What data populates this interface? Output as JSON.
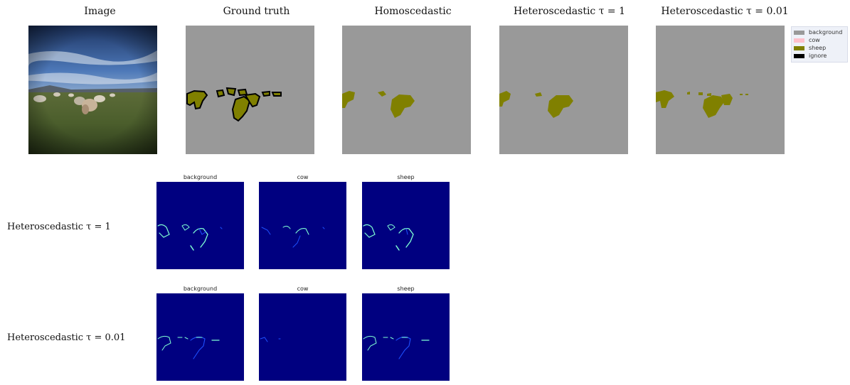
{
  "columns": [
    {
      "title": "Image"
    },
    {
      "title": "Ground truth"
    },
    {
      "title": "Homoscedastic"
    },
    {
      "title": "Heteroscedastic τ = 1"
    },
    {
      "title": "Heteroscedastic τ = 0.01"
    }
  ],
  "legend": [
    {
      "label": "background",
      "color": "#999999"
    },
    {
      "label": "cow",
      "color": "#ffc0cb"
    },
    {
      "label": "sheep",
      "color": "#808000"
    },
    {
      "label": "ignore",
      "color": "#000000"
    }
  ],
  "uncertainty_rows": [
    {
      "label": "Heteroscedastic τ = 1",
      "maps": [
        "background",
        "cow",
        "sheep"
      ]
    },
    {
      "label": "Heteroscedastic τ = 0.01",
      "maps": [
        "background",
        "cow",
        "sheep"
      ]
    }
  ],
  "colors": {
    "background": "#999999",
    "sheep": "#808000",
    "map_bg": "#000080",
    "highlight": "#7fffd4",
    "edge": "#1e50ff"
  }
}
